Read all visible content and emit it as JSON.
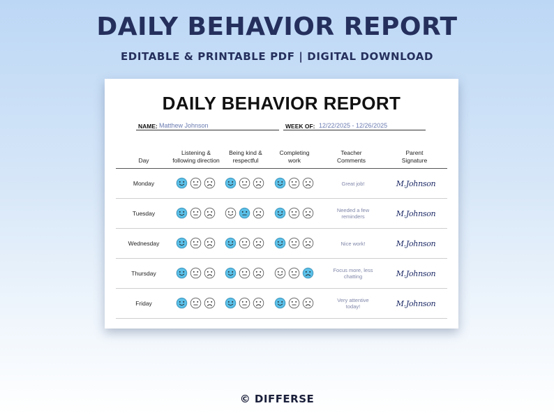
{
  "banner": {
    "title": "DAILY BEHAVIOR REPORT",
    "subtitle": "EDITABLE & PRINTABLE PDF | DIGITAL DOWNLOAD"
  },
  "sheet": {
    "title": "DAILY BEHAVIOR REPORT",
    "name_label": "NAME:",
    "name_value": "Matthew Johnson",
    "week_label": "WEEK OF:",
    "week_value": "12/22/2025 - 12/26/2025",
    "columns": {
      "day": "Day",
      "listening": [
        "Listening &",
        "following direction"
      ],
      "kind": [
        "Being kind &",
        "respectful"
      ],
      "work": [
        "Completing",
        "work"
      ],
      "comments": [
        "Teacher",
        "Comments"
      ],
      "signature": [
        "Parent",
        "Signature"
      ]
    },
    "rows": [
      {
        "day": "Monday",
        "listening": "happy",
        "kind": "happy",
        "work": "happy",
        "comment": "Great job!",
        "signature": "M.Johnson"
      },
      {
        "day": "Tuesday",
        "listening": "happy",
        "kind": "neutral",
        "work": "happy",
        "comment": "Needed a few reminders",
        "signature": "M.Johnson"
      },
      {
        "day": "Wednesday",
        "listening": "happy",
        "kind": "happy",
        "work": "happy",
        "comment": "Nice work!",
        "signature": "M.Johnson"
      },
      {
        "day": "Thursday",
        "listening": "happy",
        "kind": "happy",
        "work": "sad",
        "comment": "Focus more, less chatting",
        "signature": "M.Johnson"
      },
      {
        "day": "Friday",
        "listening": "happy",
        "kind": "happy",
        "work": "happy",
        "comment": "Very attentive today!",
        "signature": "M.Johnson"
      }
    ]
  },
  "colors": {
    "selected_face": "#5bc0e8",
    "banner_text": "#252f5c",
    "comment_text": "#7f86a8",
    "signature_ink": "#1d2a66"
  },
  "icons": [
    "happy-face-icon",
    "neutral-face-icon",
    "sad-face-icon"
  ],
  "copyright": "© DIFFERSE"
}
